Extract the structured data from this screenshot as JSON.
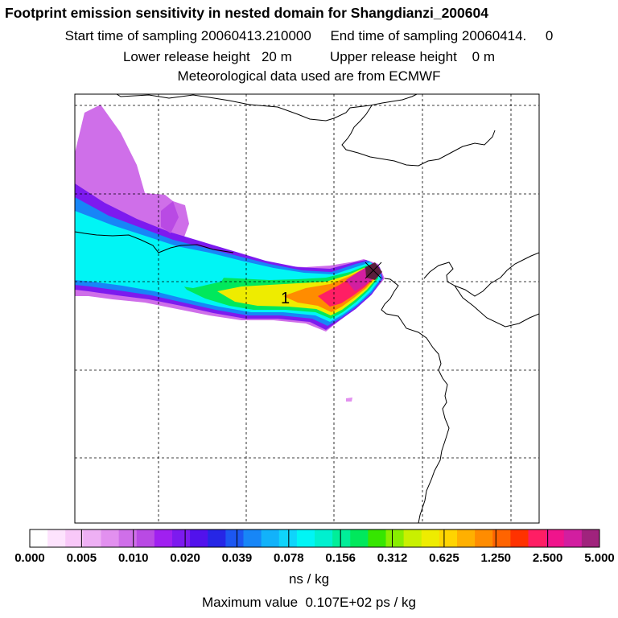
{
  "header": {
    "title": "Footprint emission sensitivity in nested domain for Shangdianzi_200604",
    "sampling_line": "Start time of sampling 20060413.210000     End time of sampling 20060414.     0",
    "release_line": "Lower release height   20 m          Upper release height    0 m",
    "met_line": "Meteorological data used are from ECMWF"
  },
  "colors": {
    "scale": [
      "#ffffff",
      "#fde3fd",
      "#f8c8f8",
      "#eeb0f4",
      "#e290ef",
      "#cf6fe9",
      "#b94ae4",
      "#a020f0",
      "#7d1aef",
      "#5212ec",
      "#2626e6",
      "#1c57f2",
      "#1786f7",
      "#12b2fa",
      "#0fd4fb",
      "#00f5f5",
      "#00f0cf",
      "#00ee99",
      "#00e85c",
      "#36e600",
      "#88ee00",
      "#c9f000",
      "#eeec00",
      "#ffd400",
      "#ffb000",
      "#ff8c00",
      "#ff6400",
      "#ff3200",
      "#ff1e64",
      "#f0148c",
      "#d21ea0",
      "#a0237d",
      "#5a1e3c"
    ],
    "coast": "#000000",
    "grid": "#000000"
  },
  "chart_data": {
    "type": "heatmap",
    "title": "Footprint emission sensitivity in nested domain for Shangdianzi_200604",
    "colorbar": {
      "tick_labels": [
        "0.000",
        "0.005",
        "0.010",
        "0.020",
        "0.039",
        "0.078",
        "0.156",
        "0.312",
        "0.625",
        "1.250",
        "2.500",
        "5.000"
      ],
      "unit_label": "ns / kg"
    },
    "max_value_label": "Maximum value  0.107E+02 ps / kg",
    "release_marker": "1",
    "grid": true,
    "plume": {
      "direction": "west-northwest of release site",
      "max_value": 10.7,
      "max_value_unit": "ps / kg"
    }
  }
}
